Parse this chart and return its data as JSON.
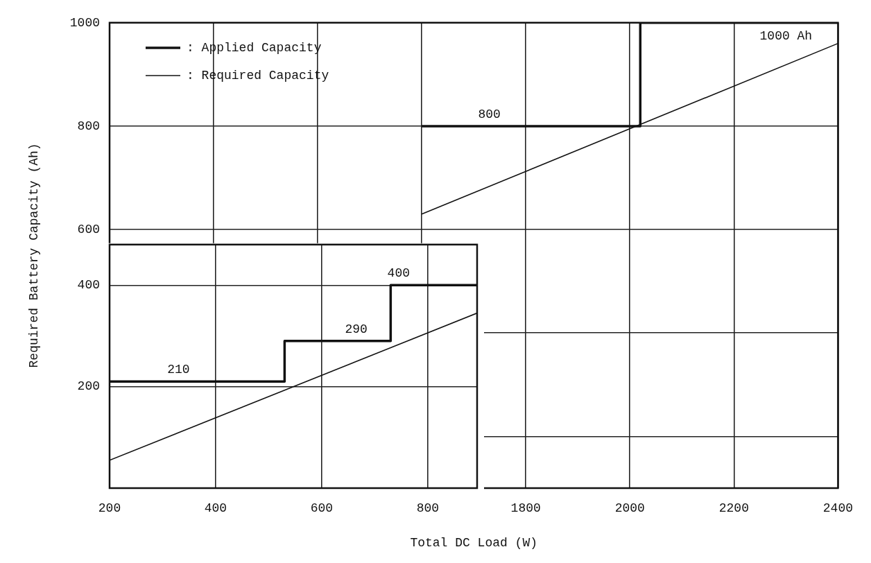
{
  "chart_data": [
    {
      "type": "line",
      "xlim": [
        200,
        893
      ],
      "xticks": [
        200,
        400,
        600,
        800
      ],
      "ylim": [
        0,
        480
      ],
      "yticks": [
        200,
        400
      ],
      "grid": true,
      "series": [
        {
          "type": "step",
          "color": "#111111",
          "x": [
            200,
            530,
            730,
            893
          ],
          "values": [
            210,
            290,
            400,
            400
          ]
        },
        {
          "type": "line",
          "color": "#111111",
          "x": [
            200,
            893
          ],
          "values": [
            55,
            345
          ]
        }
      ],
      "annotations": [
        {
          "text": "210",
          "x": 330,
          "y": 210
        },
        {
          "text": "290",
          "x": 665,
          "y": 290
        },
        {
          "text": "400",
          "x": 745,
          "y": 400
        }
      ]
    },
    {
      "type": "line",
      "xlabel": "Total DC Load (W)",
      "ylabel": "Required Battery Capacity (Ah)",
      "xlim": [
        1000,
        2400
      ],
      "xticks": [
        {
          "value": 1200,
          "label": null
        },
        {
          "value": 1400,
          "label": null
        },
        {
          "value": 1600,
          "label": null
        },
        1800,
        2000,
        2200,
        2400
      ],
      "ylim": [
        100,
        1000
      ],
      "yticks": [
        {
          "value": 200,
          "label": null
        },
        {
          "value": 400,
          "label": null
        },
        600,
        800,
        1000
      ],
      "grid": true,
      "legend": "top left",
      "series": [
        {
          "type": "step",
          "name": ": Applied Capacity",
          "color": "#111111",
          "x": [
            1600,
            2020,
            2400
          ],
          "values": [
            800,
            1000,
            1000
          ]
        },
        {
          "type": "line",
          "name": ": Required Capacity",
          "color": "#111111",
          "x": [
            1600,
            2400
          ],
          "values": [
            630,
            960
          ]
        }
      ],
      "annotations": [
        {
          "text": "800",
          "x": 1730,
          "y": 800
        },
        {
          "text": "1000 Ah",
          "x": 2300,
          "y": 1000
        }
      ]
    }
  ]
}
